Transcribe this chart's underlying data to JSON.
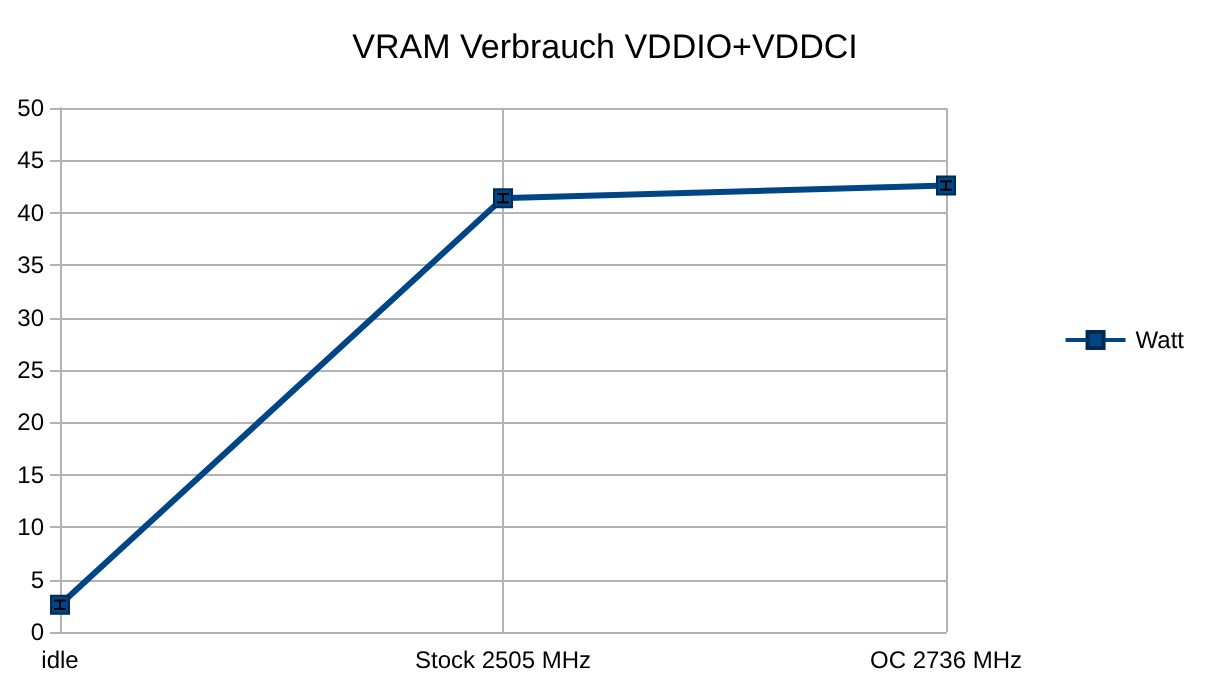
{
  "chart_data": {
    "type": "line",
    "title": "VRAM Verbrauch VDDIO+VDDCI",
    "categories": [
      "idle",
      "Stock 2505 MHz",
      "OC 2736 MHz"
    ],
    "series": [
      {
        "name": "Watt",
        "color": "#004586",
        "values": [
          2.6,
          41.4,
          42.6
        ],
        "errors": [
          0.4,
          0.4,
          0.4
        ]
      }
    ],
    "ylim": [
      0,
      50
    ],
    "yticks": [
      0,
      5,
      10,
      15,
      20,
      25,
      30,
      35,
      40,
      45,
      50
    ],
    "grid": true,
    "legend": "right",
    "marker": "square",
    "line_style": "solid"
  }
}
